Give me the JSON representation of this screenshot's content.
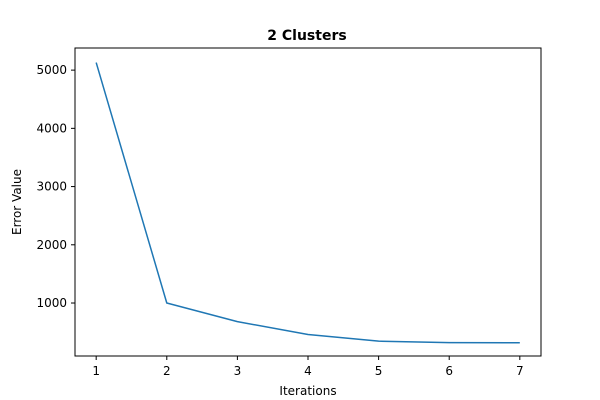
{
  "chart_data": {
    "type": "line",
    "title": "2 Clusters",
    "xlabel": "Iterations",
    "ylabel": "Error Value",
    "xlim": [
      0.7,
      7.3
    ],
    "ylim": [
      90,
      5380
    ],
    "xticks": [
      1,
      2,
      3,
      4,
      5,
      6,
      7
    ],
    "yticks": [
      1000,
      2000,
      3000,
      4000,
      5000
    ],
    "grid": false,
    "series": [
      {
        "color": "#1f77b4",
        "x": [
          1,
          2,
          3,
          4,
          5,
          6,
          7
        ],
        "y": [
          5130,
          1000,
          680,
          460,
          345,
          320,
          318
        ]
      }
    ]
  }
}
